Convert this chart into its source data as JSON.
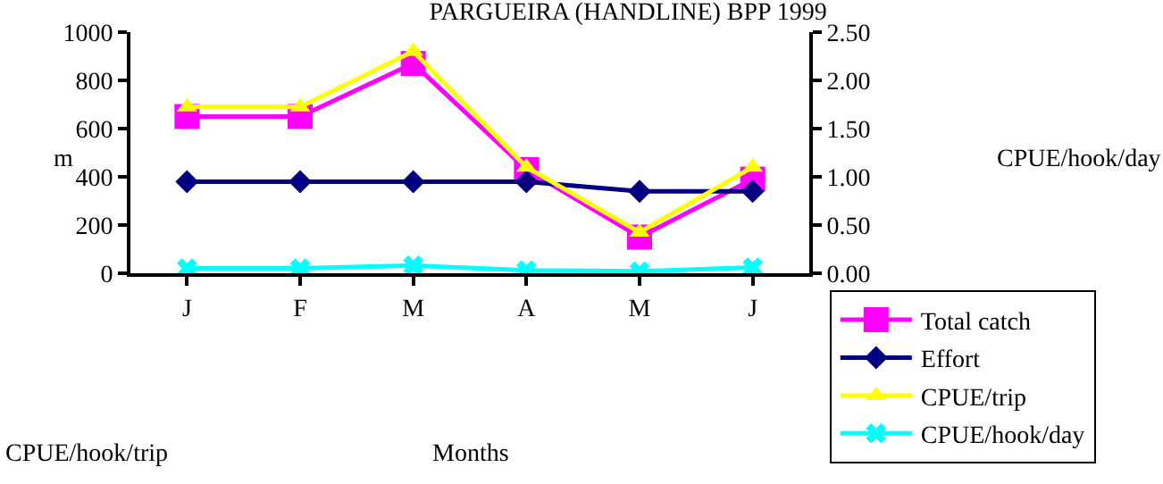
{
  "chart_data": {
    "type": "line",
    "title": "PARGUEIRA (HANDLINE) BPP 1999",
    "ylabel": "m",
    "annotations": [
      "CPUE/hook/day",
      "CPUE/hook/trip",
      "Months"
    ],
    "categories": [
      "J",
      "F",
      "M",
      "A",
      "M",
      "J"
    ],
    "series": [
      {
        "name": "Total catch",
        "color": "#ff00ff",
        "marker": "square",
        "values": [
          650,
          650,
          870,
          430,
          150,
          390
        ]
      },
      {
        "name": "Effort",
        "color": "#000080",
        "marker": "diamond",
        "values": [
          380,
          380,
          380,
          380,
          340,
          340
        ]
      },
      {
        "name": "CPUE/trip",
        "color": "#ffff00",
        "marker": "triangle",
        "values": [
          690,
          690,
          920,
          440,
          170,
          440
        ]
      },
      {
        "name": "CPUE/hook/day",
        "color": "#00ffff",
        "marker": "cross",
        "axis": "y2",
        "values": [
          0.05,
          0.05,
          0.08,
          0.03,
          0.02,
          0.06
        ]
      }
    ],
    "ylim": [
      0,
      1000
    ],
    "yticks": [
      0,
      200,
      400,
      600,
      800,
      1000
    ],
    "y2lim": [
      0,
      2.5
    ],
    "y2ticks": [
      {
        "value": 0,
        "label": "0.00"
      },
      {
        "value": 0.5,
        "label": "0.50"
      },
      {
        "value": 1,
        "label": "1.00"
      },
      {
        "value": 1.5,
        "label": "1.50"
      },
      {
        "value": 2,
        "label": "2.00"
      },
      {
        "value": 2.5,
        "label": "2.50"
      }
    ],
    "legend": "bottom right"
  }
}
